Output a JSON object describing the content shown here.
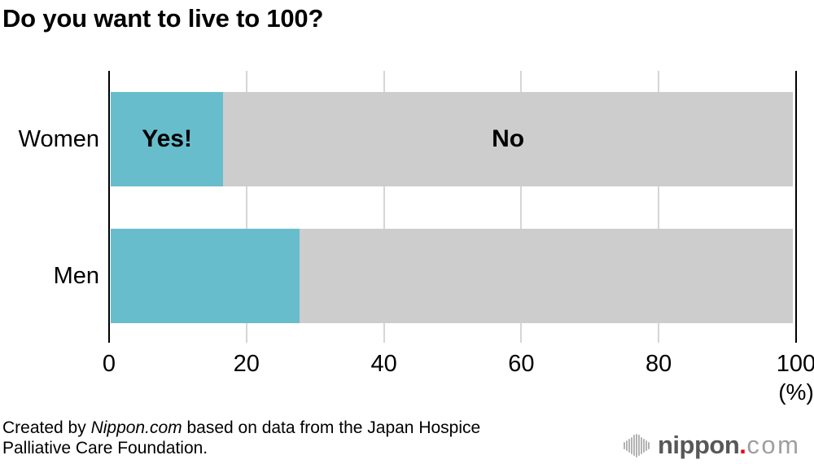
{
  "chart_data": {
    "type": "bar",
    "orientation": "horizontal",
    "stacked": true,
    "title": "Do you want to live to 100?",
    "categories": [
      "Women",
      "Men"
    ],
    "series": [
      {
        "name": "Yes",
        "values": [
          16.5,
          27.7
        ]
      },
      {
        "name": "No",
        "values": [
          83.5,
          72.3
        ]
      }
    ],
    "segment_labels": [
      [
        "Yes!",
        "No"
      ],
      [
        "",
        ""
      ]
    ],
    "xlim": [
      0,
      100
    ],
    "ticks": [
      0,
      20,
      40,
      60,
      80,
      100
    ],
    "unit_label": "(%)",
    "grid": true,
    "legend": "none"
  },
  "footer": {
    "line1_pre": "Created by ",
    "line1_source": "Nippon.com",
    "line1_rest": " based on data from the Japan Hospice",
    "line2": "Palliative Care Foundation.",
    "logo": {
      "name": "nippon",
      "dot": ".",
      "tld": "com"
    }
  },
  "colors": {
    "yes_segment": "#68bdcc",
    "no_segment": "#cdcdcd",
    "gridline": "#d6d6d6",
    "axis_line": "#000000",
    "logo_icon": "#b3b3b3",
    "logo_name": "#57585a",
    "logo_dot": "#e60012",
    "logo_tld": "#9d9fa1"
  }
}
